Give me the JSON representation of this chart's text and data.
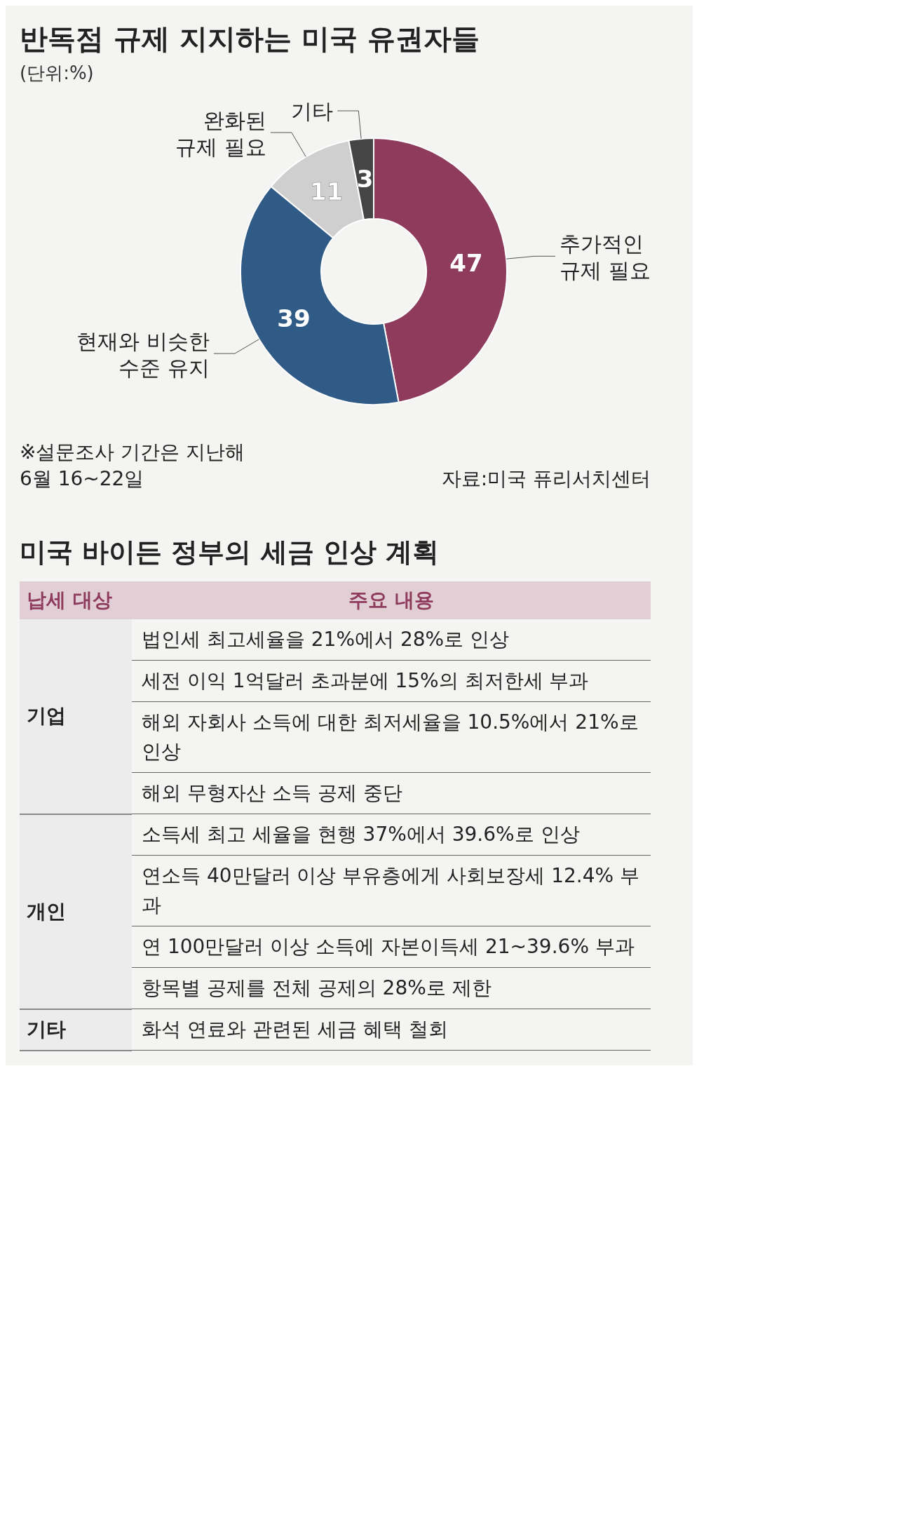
{
  "chart_data": [
    {
      "type": "donut",
      "title": "반독점 규제 지지하는 미국 유권자들",
      "subtitle": "(단위:%)",
      "categories": [
        "추가적인 규제 필요",
        "현재와 비슷한 수준 유지",
        "완화된 규제 필요",
        "기타"
      ],
      "values": [
        47,
        39,
        11,
        3
      ],
      "colors": [
        "#8e3b5c",
        "#2f5b86",
        "#cfcfcf",
        "#454545"
      ],
      "data_labels": true,
      "annotations": [
        "※설문조사 기간은 지난해 6월 16~22일",
        "자료:미국 퓨리서치센터"
      ]
    },
    {
      "type": "other",
      "title": "미국 바이든 정부의 세금 인상 계획",
      "categories": [
        "납세 대상",
        "주요 내용"
      ],
      "cell_labels": [
        [
          "기업",
          "법인세 최고세율을 21%에서 28%로 인상"
        ],
        [
          null,
          "세전 이익 1억달러 초과분에 15%의 최저한세 부과"
        ],
        [
          null,
          "해외 자회사 소득에 대한 최저세율을 10.5%에서 21%로 인상"
        ],
        [
          null,
          "해외 무형자산 소득 공제 중단"
        ],
        [
          "개인",
          "소득세 최고 세율을 현행 37%에서 39.6%로 인상"
        ],
        [
          null,
          "연소득 40만달러 이상 부유층에게 사회보장세 12.4% 부과"
        ],
        [
          null,
          "연 100만달러 이상 소득에 자본이득세 21~39.6% 부과"
        ],
        [
          null,
          "항목별 공제를 전체 공제의 28%로 제한"
        ],
        [
          "기타",
          "화석 연료와 관련된 세금 혜택 철회"
        ]
      ]
    }
  ]
}
